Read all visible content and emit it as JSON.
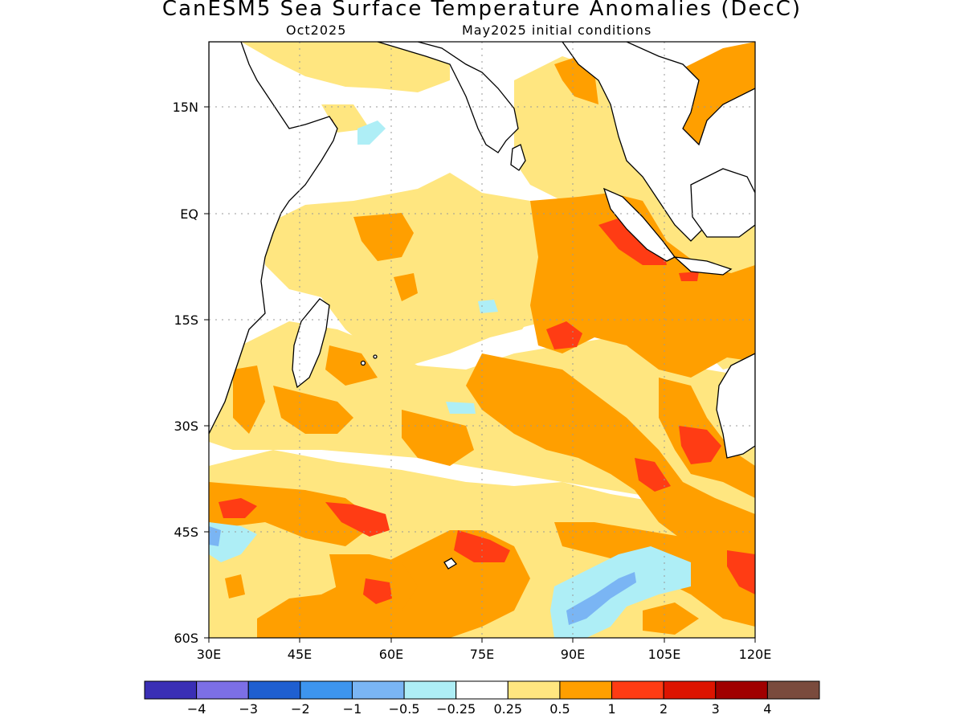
{
  "header": {
    "title": "CanESM5 Sea Surface Temperature Anomalies (DecC)",
    "valid_month": "Oct2025",
    "initial_conditions": "May2025 initial conditions"
  },
  "map": {
    "region": "Indian Ocean",
    "lon_range": [
      30,
      120
    ],
    "lat_range": [
      -60,
      24
    ],
    "x_ticks": [
      "30E",
      "45E",
      "60E",
      "75E",
      "90E",
      "105E",
      "120E"
    ],
    "y_ticks": [
      "15N",
      "EQ",
      "15S",
      "30S",
      "45S",
      "60S"
    ],
    "grid": "dotted"
  },
  "colorbar": {
    "labels": [
      "-4",
      "-3",
      "-2",
      "-1",
      "-0.5",
      "-0.25",
      "0.25",
      "0.5",
      "1",
      "2",
      "3",
      "4"
    ],
    "colors": [
      "#3a2fb5",
      "#7c6fe6",
      "#1f5fd0",
      "#3d95ee",
      "#7ab5f4",
      "#aeeef6",
      "#ffffff",
      "#ffe680",
      "#ff9f00",
      "#ff3c14",
      "#dd1400",
      "#a00000",
      "#7a4b3d"
    ]
  }
}
